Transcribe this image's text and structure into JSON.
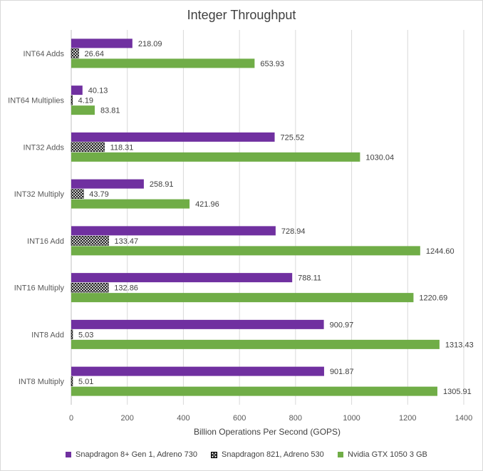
{
  "chart_data": {
    "type": "bar",
    "orientation": "horizontal",
    "title": "Integer Throughput",
    "xlabel": "Billion Operations Per Second (GOPS)",
    "ylabel": "",
    "xlim": [
      0,
      1400
    ],
    "xticks": [
      "0",
      "200",
      "400",
      "600",
      "800",
      "1000",
      "1200",
      "1400"
    ],
    "grid": "vertical",
    "legend_position": "bottom",
    "categories": [
      "INT64 Adds",
      "INT64 Multiplies",
      "INT32 Adds",
      "INT32 Multiply",
      "INT16 Add",
      "INT16 Multiply",
      "INT8 Add",
      "INT8 Multiply"
    ],
    "series": [
      {
        "name": "Snapdragon 8+ Gen 1, Adreno 730",
        "color": "#7030a0",
        "pattern": "solid",
        "values": [
          218.09,
          40.13,
          725.52,
          258.91,
          728.94,
          788.11,
          900.97,
          901.87
        ],
        "labels": [
          "218.09",
          "40.13",
          "725.52",
          "258.91",
          "728.94",
          "788.11",
          "900.97",
          "901.87"
        ]
      },
      {
        "name": "Snapdragon 821, Adreno 530",
        "color": "#000000",
        "pattern": "crosshatch",
        "values": [
          26.64,
          4.19,
          118.31,
          43.79,
          133.47,
          132.86,
          5.03,
          5.01
        ],
        "labels": [
          "26.64",
          "4.19",
          "118.31",
          "43.79",
          "133.47",
          "132.86",
          "5.03",
          "5.01"
        ]
      },
      {
        "name": "Nvidia GTX 1050 3 GB",
        "color": "#70ad47",
        "pattern": "solid",
        "values": [
          653.93,
          83.81,
          1030.04,
          421.96,
          1244.6,
          1220.69,
          1313.43,
          1305.91
        ],
        "labels": [
          "653.93",
          "83.81",
          "1030.04",
          "421.96",
          "1244.60",
          "1220.69",
          "1313.43",
          "1305.91"
        ]
      }
    ]
  }
}
